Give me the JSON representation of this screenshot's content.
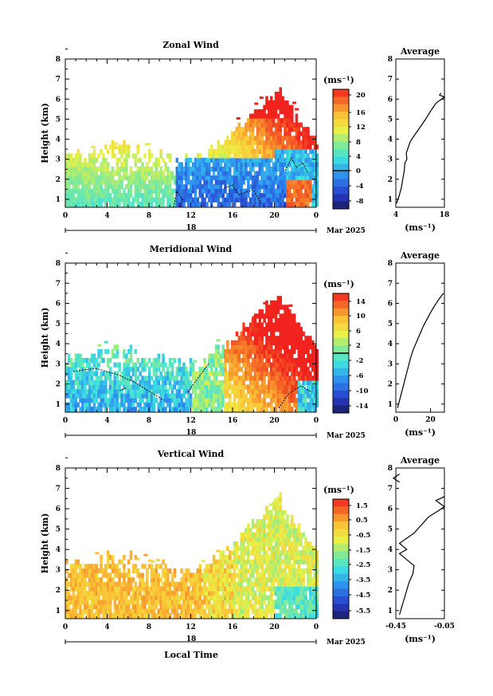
{
  "chart_data": [
    {
      "type": "heatmap",
      "title": "Zonal Wind",
      "ylabel": "Height (km)",
      "xlim": [
        0,
        24
      ],
      "ylim": [
        0.6,
        8
      ],
      "x_ticks": [
        "0",
        "4",
        "8",
        "12",
        "16",
        "20",
        "0"
      ],
      "y_ticks": [
        "1",
        "2",
        "3",
        "4",
        "5",
        "6",
        "7",
        "8"
      ],
      "date_day": "18",
      "date_label": "Mar 2025",
      "colorbar": {
        "unit": "(ms⁻¹)",
        "min": -8,
        "max": 22,
        "labels": [
          "20",
          "16",
          "12",
          "8",
          "4",
          "0",
          "-4",
          "-8"
        ],
        "zero_line": 0
      },
      "average": {
        "title": "Average",
        "unit": "(ms⁻¹)",
        "x_ticks": [
          "4",
          "18"
        ],
        "xlim": [
          4,
          18
        ],
        "profile": [
          [
            4.2,
            0.8
          ],
          [
            5.0,
            1.2
          ],
          [
            5.6,
            1.6
          ],
          [
            6.0,
            2.0
          ],
          [
            6.4,
            2.4
          ],
          [
            6.6,
            2.8
          ],
          [
            7.2,
            3.0
          ],
          [
            7.0,
            3.3
          ],
          [
            7.6,
            3.6
          ],
          [
            8.2,
            3.9
          ],
          [
            9.4,
            4.2
          ],
          [
            11.0,
            4.6
          ],
          [
            12.6,
            5.0
          ],
          [
            14.0,
            5.4
          ],
          [
            15.6,
            5.8
          ],
          [
            17.2,
            6.0
          ],
          [
            18.0,
            6.1
          ],
          [
            16.6,
            6.2
          ],
          [
            17.0,
            6.3
          ]
        ]
      }
    },
    {
      "type": "heatmap",
      "title": "Meridional Wind",
      "ylabel": "Height (km)",
      "xlim": [
        0,
        24
      ],
      "ylim": [
        0.6,
        8
      ],
      "x_ticks": [
        "0",
        "4",
        "8",
        "12",
        "16",
        "20",
        "0"
      ],
      "y_ticks": [
        "1",
        "2",
        "3",
        "4",
        "5",
        "6",
        "7",
        "8"
      ],
      "date_day": "18",
      "date_label": "Mar 2025",
      "colorbar": {
        "unit": "(ms⁻¹)",
        "min": -14,
        "max": 16,
        "labels": [
          "14",
          "10",
          "6",
          "2",
          "-2",
          "-6",
          "-10",
          "-14"
        ],
        "zero_line": 0
      },
      "average": {
        "title": "Average",
        "unit": "(ms⁻¹)",
        "x_ticks": [
          "0",
          "20"
        ],
        "xlim": [
          0,
          28
        ],
        "profile": [
          [
            1.0,
            0.8
          ],
          [
            2.5,
            1.3
          ],
          [
            4.0,
            1.8
          ],
          [
            5.5,
            2.3
          ],
          [
            7.0,
            2.8
          ],
          [
            8.5,
            3.3
          ],
          [
            10.0,
            3.7
          ],
          [
            12.0,
            4.1
          ],
          [
            14.0,
            4.5
          ],
          [
            16.0,
            4.9
          ],
          [
            18.5,
            5.3
          ],
          [
            21.0,
            5.7
          ],
          [
            24.0,
            6.1
          ],
          [
            26.5,
            6.4
          ],
          [
            27.5,
            6.5
          ]
        ]
      }
    },
    {
      "type": "heatmap",
      "title": "Vertical Wind",
      "ylabel": "Height (km)",
      "xlabel": "Local Time",
      "xlim": [
        0,
        24
      ],
      "ylim": [
        0.6,
        8
      ],
      "x_ticks": [
        "0",
        "4",
        "8",
        "12",
        "16",
        "20",
        "0"
      ],
      "y_ticks": [
        "1",
        "2",
        "3",
        "4",
        "5",
        "6",
        "7",
        "8"
      ],
      "date_day": "18",
      "date_label": "Mar 2025",
      "colorbar": {
        "unit": "(ms⁻¹)",
        "min": -6,
        "max": 2,
        "labels": [
          "1.5",
          "0.5",
          "-0.5",
          "-1.5",
          "-2.5",
          "-3.5",
          "-4.5",
          "-5.5"
        ]
      },
      "average": {
        "title": "Average",
        "unit": "(ms⁻¹)",
        "x_ticks": [
          "-0.45",
          "-0.05"
        ],
        "xlim": [
          -0.45,
          -0.05
        ],
        "profile": [
          [
            -0.42,
            0.8
          ],
          [
            -0.4,
            1.2
          ],
          [
            -0.38,
            1.6
          ],
          [
            -0.36,
            2.0
          ],
          [
            -0.34,
            2.4
          ],
          [
            -0.31,
            2.8
          ],
          [
            -0.3,
            3.2
          ],
          [
            -0.36,
            3.5
          ],
          [
            -0.42,
            3.8
          ],
          [
            -0.36,
            4.0
          ],
          [
            -0.42,
            4.3
          ],
          [
            -0.3,
            4.8
          ],
          [
            -0.24,
            5.2
          ],
          [
            -0.18,
            5.6
          ],
          [
            -0.1,
            5.9
          ],
          [
            -0.05,
            6.1
          ],
          [
            -0.12,
            6.4
          ],
          [
            -0.05,
            6.6
          ]
        ]
      }
    }
  ]
}
